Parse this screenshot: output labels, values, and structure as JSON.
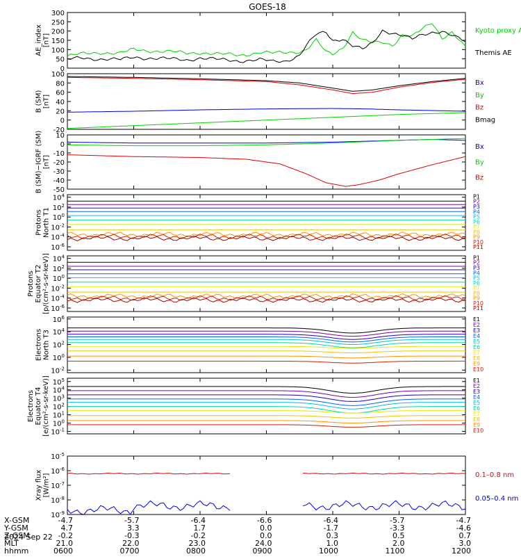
{
  "title": "GOES-18",
  "date_label": "2024 Sep 22",
  "colors": {
    "black": "#000000",
    "red": "#e00000",
    "green": "#00d000",
    "blue": "#0000e0",
    "P": [
      "#000000",
      "#7a00a0",
      "#2000c0",
      "#0060ff",
      "#00c0e0",
      "#00d8a0",
      "#e8e800",
      "#f0c000",
      "#ff9000",
      "#d02000",
      "#a00000"
    ],
    "E": [
      "#000000",
      "#7a00a0",
      "#2000c0",
      "#0060ff",
      "#00c0e0",
      "#00d8a0",
      "#e8e800",
      "#f0c000",
      "#ff9000",
      "#d02000",
      "#a00000"
    ]
  },
  "axis_rows": {
    "labels": [
      "X-GSM",
      "Y-GSM",
      "Z-GSM",
      "MLT",
      "hhmm"
    ],
    "columns": [
      [
        "-4.7",
        "4.7",
        "-0.2",
        "21.0",
        "0600"
      ],
      [
        "-5.7",
        "3.3",
        "-0.3",
        "22.0",
        "0700"
      ],
      [
        "-6.4",
        "1.7",
        "-0.2",
        "23.0",
        "0800"
      ],
      [
        "-6.6",
        "0.0",
        "0.0",
        "24.0",
        "0900"
      ],
      [
        "-6.4",
        "-1.7",
        "0.3",
        "1.0",
        "1000"
      ],
      [
        "-5.7",
        "-3.3",
        "0.5",
        "2.0",
        "1100"
      ],
      [
        "-4.7",
        "-4.6",
        "0.7",
        "3.0",
        "1200"
      ]
    ]
  },
  "chart_data": [
    {
      "type": "line",
      "ylabel": [
        "AE_index",
        "[nT]"
      ],
      "yticks": [
        "0",
        "50",
        "100",
        "150",
        "200",
        "250",
        "300"
      ],
      "ylim": [
        0,
        300
      ],
      "legend": [
        "Kyoto proxy AE",
        "Themis AE"
      ],
      "series": [
        {
          "name": "Kyoto proxy AE",
          "color": "green",
          "x": [
            6.0,
            6.2,
            6.5,
            6.8,
            7.0,
            7.2,
            7.5,
            7.8,
            8.0,
            8.3,
            8.6,
            8.9,
            9.1,
            9.3,
            9.5,
            9.6,
            9.75,
            9.9,
            10.0,
            10.15,
            10.3,
            10.45,
            10.6,
            10.75,
            10.9,
            11.05,
            11.2,
            11.35,
            11.5,
            11.65,
            11.8,
            11.95,
            12.0
          ],
          "y": [
            65,
            75,
            85,
            80,
            100,
            95,
            90,
            80,
            85,
            75,
            70,
            85,
            80,
            85,
            90,
            100,
            150,
            85,
            75,
            110,
            195,
            150,
            135,
            140,
            125,
            180,
            170,
            210,
            245,
            165,
            195,
            130,
            110
          ]
        },
        {
          "name": "Themis AE",
          "color": "black",
          "x": [
            6.0,
            6.2,
            6.5,
            6.8,
            7.0,
            7.2,
            7.5,
            7.8,
            8.0,
            8.3,
            8.6,
            8.9,
            9.1,
            9.3,
            9.5,
            9.6,
            9.75,
            9.9,
            10.0,
            10.15,
            10.3,
            10.45,
            10.6,
            10.75,
            10.9,
            11.05,
            11.2,
            11.35,
            11.5,
            11.65,
            11.8,
            11.95,
            12.0
          ],
          "y": [
            45,
            55,
            50,
            45,
            60,
            55,
            50,
            45,
            55,
            45,
            40,
            45,
            35,
            40,
            70,
            120,
            180,
            195,
            150,
            160,
            120,
            100,
            135,
            205,
            190,
            175,
            155,
            180,
            195,
            200,
            175,
            150,
            140
          ]
        }
      ]
    },
    {
      "type": "line",
      "ylabel": [
        "B (SM)",
        "[nT]"
      ],
      "yticks": [
        "-20",
        "0",
        "20",
        "40",
        "60",
        "80",
        "100"
      ],
      "ylim": [
        -20,
        100
      ],
      "legend": [
        "Bx",
        "By",
        "Bz",
        "Bmag"
      ],
      "series": [
        {
          "name": "Bx",
          "color": "blue",
          "x": [
            6,
            7,
            8,
            9,
            10,
            10.5,
            11,
            12
          ],
          "y": [
            17,
            19,
            22,
            24,
            25,
            24,
            22,
            19
          ]
        },
        {
          "name": "By",
          "color": "green",
          "x": [
            6,
            7,
            8,
            9,
            10,
            11,
            12
          ],
          "y": [
            -18,
            -12,
            -6,
            0,
            6,
            12,
            16
          ]
        },
        {
          "name": "Bz",
          "color": "red",
          "x": [
            6,
            7,
            8,
            9,
            9.5,
            10,
            10.3,
            10.6,
            11,
            11.5,
            12
          ],
          "y": [
            92,
            90,
            87,
            83,
            76,
            65,
            57,
            60,
            71,
            81,
            88
          ]
        },
        {
          "name": "Bmag",
          "color": "black",
          "x": [
            6,
            7,
            8,
            9,
            9.5,
            10,
            10.3,
            10.6,
            11,
            11.5,
            12
          ],
          "y": [
            94,
            92,
            89,
            85,
            80,
            69,
            62,
            65,
            74,
            83,
            90
          ]
        }
      ]
    },
    {
      "type": "line",
      "ylabel": [
        "B (SM)−IGRF (SM)",
        "[nT]"
      ],
      "yticks": [
        "-50",
        "-40",
        "-30",
        "-20",
        "-10",
        "0",
        "10"
      ],
      "ylim": [
        -50,
        10
      ],
      "legend": [
        "Bx",
        "By",
        "Bz"
      ],
      "series": [
        {
          "name": "Bx",
          "color": "blue",
          "x": [
            6,
            7,
            8,
            9,
            10,
            11,
            11.5,
            12
          ],
          "y": [
            2,
            1,
            1,
            1,
            2,
            4,
            5,
            4
          ]
        },
        {
          "name": "By",
          "color": "green",
          "x": [
            6,
            7,
            8,
            9,
            10,
            11,
            12
          ],
          "y": [
            -1,
            -2,
            -2,
            -1,
            1,
            4,
            6
          ]
        },
        {
          "name": "Bz",
          "color": "red",
          "x": [
            6,
            7,
            8,
            8.7,
            9.2,
            9.6,
            9.9,
            10.2,
            10.4,
            10.7,
            11,
            11.5,
            12
          ],
          "y": [
            -12,
            -14,
            -15,
            -17,
            -22,
            -33,
            -43,
            -47,
            -45,
            -40,
            -33,
            -23,
            -14
          ]
        }
      ]
    },
    {
      "type": "line",
      "log": true,
      "ylabel": [
        "Protons",
        "North T1"
      ],
      "yticks": [
        "10^-6",
        "10^-4",
        "10^-2",
        "10^0",
        "10^2",
        "10^4"
      ],
      "ylim": [
        -6.7,
        4.5
      ],
      "legend": [
        "P1",
        "P2",
        "P3",
        "P4",
        "P5",
        "P6",
        "P7",
        "P8",
        "P9",
        "P10",
        "P11"
      ],
      "series": [
        {
          "name": "P1",
          "logy": 3.2
        },
        {
          "name": "P2",
          "logy": 2.5
        },
        {
          "name": "P3",
          "logy": 1.8
        },
        {
          "name": "P4",
          "logy": 1.1
        },
        {
          "name": "P5",
          "logy": 0.3
        },
        {
          "name": "P6",
          "logy": -0.6
        },
        {
          "name": "P7",
          "logy": -1.5
        },
        {
          "name": "P8",
          "logy": -2.6
        },
        {
          "name": "P9",
          "logy": -3.5
        },
        {
          "name": "P10",
          "logy": -3.9
        },
        {
          "name": "P11",
          "logy": -4.3
        }
      ]
    },
    {
      "type": "line",
      "log": true,
      "ylabel": [
        "Protons",
        "Equator T2",
        "[p/(cm²-s-sr-keV)]"
      ],
      "yticks": [
        "10^-6",
        "10^-4",
        "10^-2",
        "10^0",
        "10^2",
        "10^4"
      ],
      "ylim": [
        -6.7,
        4.5
      ],
      "legend": [
        "P1",
        "P2",
        "P3",
        "P4",
        "P5",
        "P6",
        "P7",
        "P8",
        "P9",
        "P10",
        "P11"
      ],
      "series": [
        {
          "name": "P1",
          "logy": 3.2
        },
        {
          "name": "P2",
          "logy": 2.4
        },
        {
          "name": "P3",
          "logy": 1.7
        },
        {
          "name": "P4",
          "logy": 0.9
        },
        {
          "name": "P5",
          "logy": 0.1
        },
        {
          "name": "P6",
          "logy": -0.8
        },
        {
          "name": "P7",
          "logy": -1.7
        },
        {
          "name": "P8",
          "logy": -2.8
        },
        {
          "name": "P9",
          "logy": -3.6
        },
        {
          "name": "P10",
          "logy": -4.0
        },
        {
          "name": "P11",
          "logy": -4.4
        }
      ]
    },
    {
      "type": "line",
      "log": true,
      "ylabel": [
        "Electrons",
        "North T3"
      ],
      "yticks": [
        "10^-2",
        "10^0",
        "10^2",
        "10^4",
        "10^6"
      ],
      "ylim": [
        -2.4,
        6.3
      ],
      "legend": [
        "E1",
        "E2",
        "E3",
        "E4",
        "E5",
        "E6",
        "E7",
        "E8",
        "E9",
        "E10"
      ],
      "series": [
        {
          "name": "E1",
          "logy": 4.6
        },
        {
          "name": "E2",
          "logy": 4.1
        },
        {
          "name": "E3",
          "logy": 3.6
        },
        {
          "name": "E4",
          "logy": 3.2
        },
        {
          "name": "E5",
          "logy": 2.8
        },
        {
          "name": "E6",
          "logy": 2.3
        },
        {
          "name": "E7",
          "logy": 1.7
        },
        {
          "name": "E8",
          "logy": 1.0
        },
        {
          "name": "E9",
          "logy": 0.2
        },
        {
          "name": "E10",
          "logy": -0.6
        }
      ]
    },
    {
      "type": "line",
      "log": true,
      "ylabel": [
        "Electrons",
        "Equator T4",
        "[e/(cm²-s-sr-keV)]"
      ],
      "yticks": [
        "10^-1",
        "10^0",
        "10^1",
        "10^2",
        "10^3",
        "10^4",
        "10^5"
      ],
      "ylim": [
        -1.3,
        5.4
      ],
      "legend": [
        "E1",
        "E2",
        "E3",
        "E4",
        "E5",
        "E6",
        "E7",
        "E8",
        "E9",
        "E10"
      ],
      "series": [
        {
          "name": "E1",
          "logy": 4.4
        },
        {
          "name": "E2",
          "logy": 3.9
        },
        {
          "name": "E3",
          "logy": 3.4
        },
        {
          "name": "E4",
          "logy": 2.9
        },
        {
          "name": "E5",
          "logy": 2.5
        },
        {
          "name": "E6",
          "logy": 2.0
        },
        {
          "name": "E7",
          "logy": 1.5
        },
        {
          "name": "E8",
          "logy": 0.9
        },
        {
          "name": "E9",
          "logy": 0.3
        },
        {
          "name": "E10",
          "logy": -0.2
        }
      ]
    },
    {
      "type": "line",
      "log": true,
      "ylabel": [
        "Xray flux",
        "[W/m²]"
      ],
      "yticks": [
        "10^-9",
        "10^-8",
        "10^-7",
        "10^-6",
        "10^-5"
      ],
      "ylim": [
        -9.0,
        -5.0
      ],
      "legend": [
        "0.1–0.8 nm",
        "0.05–0.4 nm"
      ],
      "gap_hours": [
        8.45,
        9.55
      ],
      "series": [
        {
          "name": "0.1–0.8 nm",
          "color": "red",
          "logy": -6.2
        },
        {
          "name": "0.05–0.4 nm",
          "color": "blue",
          "logy": -8.4
        }
      ]
    }
  ]
}
